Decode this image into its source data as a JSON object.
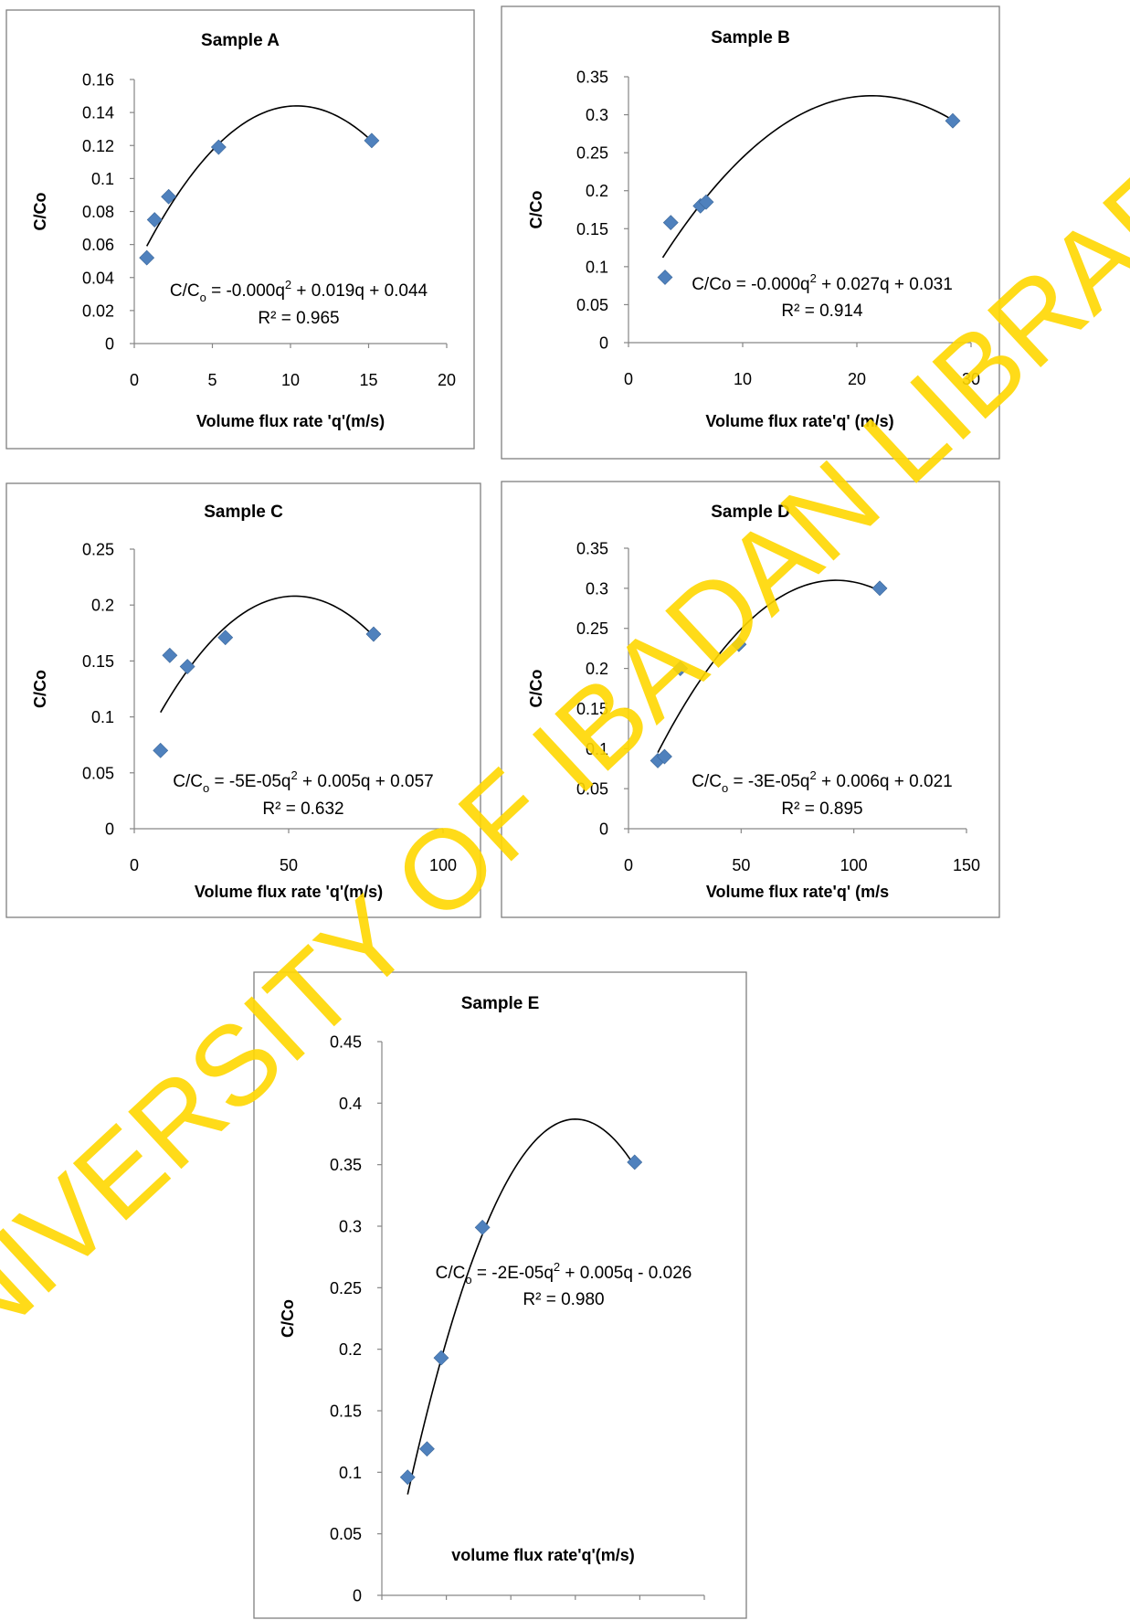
{
  "chart_data": [
    {
      "type": "scatter",
      "title": "Sample A",
      "xlabel": "Volume flux rate 'q'(m/s)",
      "ylabel": "C/Co",
      "xlim": [
        0,
        20
      ],
      "ylim": [
        0,
        0.16
      ],
      "xticks": [
        "0",
        "5",
        "10",
        "15",
        "20"
      ],
      "yticks": [
        "0",
        "0.02",
        "0.04",
        "0.06",
        "0.08",
        "0.1",
        "0.12",
        "0.14",
        "0.16"
      ],
      "x": [
        0.8,
        1.3,
        2.2,
        5.4,
        15.2
      ],
      "y": [
        0.052,
        0.075,
        0.089,
        0.119,
        0.123
      ],
      "trendline": {
        "type": "polynomial",
        "order": 2,
        "x_range": [
          0.8,
          15.2
        ],
        "peak": [
          10.4,
          0.144
        ]
      },
      "equation_label": {
        "lhs": "C/C",
        "sub": "o",
        "mid": " = -0.000q",
        "sup": "2",
        "rhs": " + 0.019q + 0.044"
      },
      "r2_label": "R² = 0.965",
      "grid": false,
      "marker_color": "#4F81BD"
    },
    {
      "type": "scatter",
      "title": "Sample B",
      "xlabel": "Volume flux rate'q' (m/s)",
      "ylabel": "C/Co",
      "xlim": [
        0,
        30
      ],
      "ylim": [
        0,
        0.35
      ],
      "xticks": [
        "0",
        "10",
        "20",
        "30"
      ],
      "yticks": [
        "0",
        "0.05",
        "0.1",
        "0.15",
        "0.2",
        "0.25",
        "0.3",
        "0.35"
      ],
      "x": [
        3.2,
        3.7,
        6.3,
        6.8,
        28.4
      ],
      "y": [
        0.086,
        0.158,
        0.18,
        0.185,
        0.292
      ],
      "trendline": {
        "type": "polynomial",
        "order": 2,
        "x_range": [
          3.0,
          28.4
        ],
        "peak": [
          21.3,
          0.325
        ]
      },
      "equation_label": {
        "lhs": "C/Co",
        "sub": "",
        "mid": " = -0.000q",
        "sup": "2",
        "rhs": " + 0.027q + 0.031"
      },
      "r2_label": "R² = 0.914",
      "grid": false,
      "marker_color": "#4F81BD"
    },
    {
      "type": "scatter",
      "title": "Sample C",
      "xlabel": "Volume flux rate 'q'(m/s)",
      "ylabel": "C/Co",
      "xlim": [
        0,
        100
      ],
      "ylim": [
        0,
        0.25
      ],
      "xticks": [
        "0",
        "50",
        "100"
      ],
      "yticks": [
        "0",
        "0.05",
        "0.1",
        "0.15",
        "0.2",
        "0.25"
      ],
      "x": [
        8.5,
        11.5,
        17.2,
        29.5,
        77.5
      ],
      "y": [
        0.07,
        0.155,
        0.145,
        0.171,
        0.174
      ],
      "trendline": {
        "type": "polynomial",
        "order": 2,
        "x_range": [
          8.5,
          77.5
        ],
        "peak": [
          52,
          0.208
        ]
      },
      "equation_label": {
        "lhs": "C/C",
        "sub": "o",
        "mid": " = -5E-05q",
        "sup": "2",
        "rhs": " + 0.005q + 0.057"
      },
      "r2_label": "R² = 0.632",
      "grid": false,
      "marker_color": "#4F81BD"
    },
    {
      "type": "scatter",
      "title": "Sample D",
      "xlabel": "Volume flux rate'q' (m/s",
      "ylabel": "C/Co",
      "xlim": [
        0,
        150
      ],
      "ylim": [
        0,
        0.35
      ],
      "xticks": [
        "0",
        "50",
        "100",
        "150"
      ],
      "yticks": [
        "0",
        "0.05",
        "0.1",
        "0.15",
        "0.2",
        "0.25",
        "0.3",
        "0.35"
      ],
      "x": [
        13,
        16,
        23,
        49,
        111.5
      ],
      "y": [
        0.085,
        0.09,
        0.2,
        0.23,
        0.3
      ],
      "trendline": {
        "type": "polynomial",
        "order": 2,
        "x_range": [
          13,
          111.5
        ],
        "peak": [
          92,
          0.31
        ]
      },
      "equation_label": {
        "lhs": "C/C",
        "sub": "o",
        "mid": " = -3E-05q",
        "sup": "2",
        "rhs": " + 0.006q + 0.021"
      },
      "r2_label": "R² = 0.895",
      "grid": false,
      "marker_color": "#4F81BD"
    },
    {
      "type": "scatter",
      "title": "Sample E",
      "xlabel": "volume flux rate'q'(m/s)",
      "ylabel": "C/Co",
      "xlim": [
        0,
        250
      ],
      "ylim": [
        0,
        0.45
      ],
      "xticks": [
        "0",
        "50",
        "100",
        "150",
        "200",
        "250"
      ],
      "yticks": [
        "0",
        "0.05",
        "0.1",
        "0.15",
        "0.2",
        "0.25",
        "0.3",
        "0.35",
        "0.4",
        "0.45"
      ],
      "x": [
        20,
        35,
        46,
        78,
        196
      ],
      "y": [
        0.096,
        0.119,
        0.193,
        0.299,
        0.352
      ],
      "trendline": {
        "type": "polynomial",
        "order": 2,
        "x_range": [
          20,
          196
        ],
        "peak": [
          150,
          0.387
        ]
      },
      "equation_label": {
        "lhs": "C/C",
        "sub": "o",
        "mid": " = -2E-05q",
        "sup": "2",
        "rhs": " + 0.005q - 0.026"
      },
      "r2_label": "R² = 0.980",
      "grid": false,
      "marker_color": "#4F81BD"
    }
  ],
  "watermark": {
    "text": "UNIVERSITY OF IBADAN LIBRARY",
    "color": "#FFD700"
  }
}
